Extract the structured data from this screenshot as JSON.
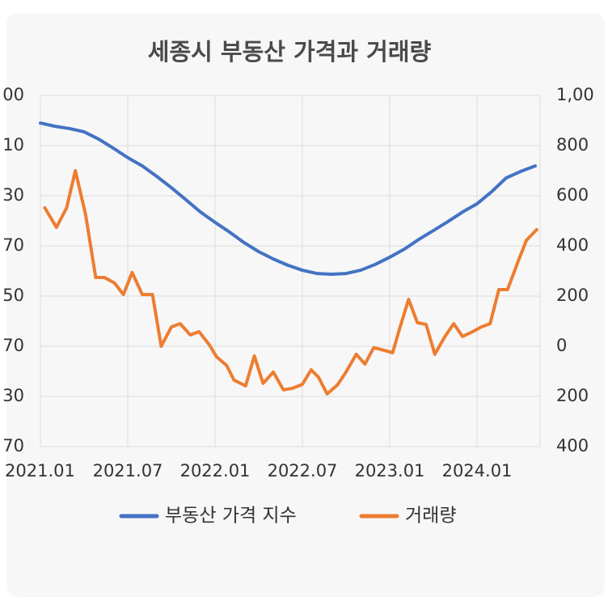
{
  "chart_data": {
    "type": "line",
    "title": "세종시 부동산 가격과 거래량",
    "left_axis_labels": [
      "00",
      "10",
      "30",
      "70",
      "50",
      "70",
      "30",
      "70"
    ],
    "ylim": [
      -400,
      1000
    ],
    "yticks": [
      {
        "value": 1000,
        "label": "1,00"
      },
      800,
      600,
      400,
      200,
      0,
      {
        "value": -200,
        "label": "200"
      },
      {
        "value": -400,
        "label": "400"
      }
    ],
    "xlim": [
      0,
      34.5
    ],
    "xticks": [
      {
        "value": 0,
        "label": "2021.01"
      },
      {
        "value": 6,
        "label": "2021.07"
      },
      {
        "value": 12,
        "label": "2022.01"
      },
      {
        "value": 18,
        "label": "2022.07"
      },
      {
        "value": 24,
        "label": "2023.01"
      },
      {
        "value": 30,
        "label": "2024.01"
      }
    ],
    "grid": true,
    "legend": "bottom",
    "series": [
      {
        "name": "부동산 가격 지수",
        "color": "#4472c4",
        "x": [
          0,
          1,
          2,
          3,
          4,
          5,
          6,
          7,
          8,
          9,
          10,
          11,
          12,
          13,
          14,
          15,
          16,
          17,
          18,
          19,
          20,
          21,
          22,
          23,
          24,
          25,
          26,
          27,
          28,
          29,
          30,
          31,
          32,
          33,
          34
        ],
        "values": [
          890,
          877,
          868,
          855,
          826,
          790,
          752,
          719,
          677,
          632,
          584,
          535,
          494,
          455,
          413,
          377,
          348,
          323,
          303,
          290,
          287,
          290,
          303,
          326,
          355,
          387,
          426,
          461,
          497,
          535,
          568,
          616,
          671,
          697,
          719
        ]
      },
      {
        "name": "거래량",
        "color": "#ed7d31",
        "x": [
          0.3,
          1.1,
          1.8,
          2.4,
          3.1,
          3.8,
          4.4,
          5.1,
          5.7,
          6.3,
          7,
          7.7,
          8.3,
          9,
          9.6,
          10.3,
          10.9,
          11.6,
          12.1,
          12.8,
          13.3,
          14.1,
          14.7,
          15.3,
          16,
          16.7,
          17.3,
          18,
          18.6,
          19.1,
          19.7,
          20.4,
          21,
          21.7,
          22.3,
          22.9,
          23.6,
          24.2,
          24.7,
          25.3,
          25.9,
          26.5,
          27.1,
          27.8,
          28.4,
          29,
          29.7,
          30.3,
          30.9,
          31.5,
          32.1,
          32.8,
          33.4,
          34.1
        ],
        "values": [
          552,
          474,
          552,
          700,
          526,
          274,
          274,
          252,
          206,
          294,
          206,
          206,
          0,
          77,
          90,
          45,
          58,
          6,
          -42,
          -77,
          -135,
          -158,
          -39,
          -148,
          -103,
          -174,
          -168,
          -152,
          -94,
          -123,
          -190,
          -155,
          -103,
          -32,
          -71,
          -6,
          -16,
          -26,
          74,
          187,
          94,
          87,
          -32,
          39,
          90,
          39,
          58,
          77,
          90,
          226,
          226,
          335,
          423,
          465
        ]
      }
    ]
  }
}
